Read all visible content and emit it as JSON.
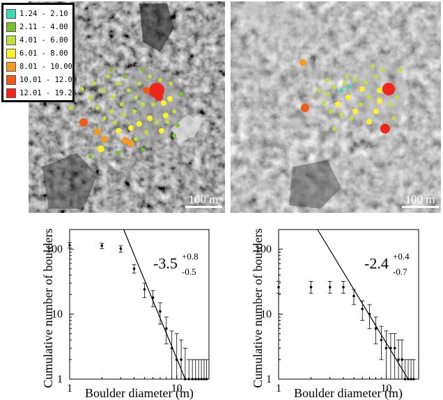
{
  "figure": {
    "legend": {
      "entries": [
        {
          "label": "1.24 - 2.10",
          "color": "#3fd9b4"
        },
        {
          "label": "2.11 - 4.00",
          "color": "#7cbf2a"
        },
        {
          "label": "4.01 - 6.00",
          "color": "#bfe03a"
        },
        {
          "label": "6.01 - 8.00",
          "color": "#fbf22d"
        },
        {
          "label": "8.01 - 10.00",
          "color": "#f29a22"
        },
        {
          "label": "10.01 - 12.00",
          "color": "#ef5b17"
        },
        {
          "label": "12.01 - 19.25",
          "color": "#f1261a"
        }
      ]
    },
    "images": [
      {
        "scale_label": "100 m",
        "tone": "dark grey rocky terrain with bright boulder cluster"
      },
      {
        "scale_label": "100 m",
        "tone": "lighter grey terrain with boulder cluster"
      }
    ]
  },
  "chart_data": [
    {
      "type": "scatter",
      "xlabel": "Boulder diameter (m)",
      "ylabel": "Cumulative number of boulders",
      "xscale": "log",
      "yscale": "log",
      "xlim": [
        1,
        20
      ],
      "ylim": [
        1,
        200
      ],
      "xticks": [
        "1",
        "10"
      ],
      "yticks": [
        "1",
        "10",
        "100"
      ],
      "annotation": {
        "value": "-3.5",
        "sup": "+0.8",
        "sub": "-0.5"
      },
      "fit_line": {
        "slope": -3.5,
        "points": [
          [
            3.2,
            200
          ],
          [
            12,
            1
          ]
        ]
      },
      "points": [
        {
          "x": 1.0,
          "y": 115,
          "err_lo": 104,
          "err_hi": 126
        },
        {
          "x": 2.0,
          "y": 113,
          "err_lo": 102,
          "err_hi": 124
        },
        {
          "x": 3.0,
          "y": 102,
          "err_lo": 90,
          "err_hi": 113
        },
        {
          "x": 4.0,
          "y": 50,
          "err_lo": 43,
          "err_hi": 58
        },
        {
          "x": 5.0,
          "y": 24,
          "err_lo": 18,
          "err_hi": 30
        },
        {
          "x": 6.0,
          "y": 18,
          "err_lo": 13,
          "err_hi": 23
        },
        {
          "x": 7.0,
          "y": 11,
          "err_lo": 7,
          "err_hi": 15
        },
        {
          "x": 8.0,
          "y": 6,
          "err_lo": 3.5,
          "err_hi": 9
        },
        {
          "x": 9.0,
          "y": 3,
          "err_lo": 1,
          "err_hi": 5.5
        },
        {
          "x": 10.0,
          "y": 2,
          "err_lo": 1,
          "err_hi": 5
        },
        {
          "x": 11.0,
          "y": 2,
          "err_lo": 1,
          "err_hi": 4
        },
        {
          "x": 12.0,
          "y": 1,
          "err_lo": 1,
          "err_hi": 3
        },
        {
          "x": 13.0,
          "y": 1,
          "err_lo": 1,
          "err_hi": 2
        },
        {
          "x": 14.0,
          "y": 1,
          "err_lo": 1,
          "err_hi": 2
        },
        {
          "x": 15.0,
          "y": 1,
          "err_lo": 1,
          "err_hi": 2
        },
        {
          "x": 16.0,
          "y": 1,
          "err_lo": 1,
          "err_hi": 2
        },
        {
          "x": 17.0,
          "y": 1,
          "err_lo": 1,
          "err_hi": 2
        },
        {
          "x": 18.0,
          "y": 1,
          "err_lo": 1,
          "err_hi": 2
        },
        {
          "x": 19.0,
          "y": 1,
          "err_lo": 1,
          "err_hi": 2
        }
      ]
    },
    {
      "type": "scatter",
      "xlabel": "Boulder diameter (m)",
      "ylabel": "Cumulative number of boulders",
      "xscale": "log",
      "yscale": "log",
      "xlim": [
        1,
        20
      ],
      "ylim": [
        1,
        200
      ],
      "xticks": [
        "1",
        "10"
      ],
      "yticks": [
        "1",
        "10",
        "100"
      ],
      "annotation": {
        "value": "-2.4",
        "sup": "+0.4",
        "sub": "-0.7"
      },
      "fit_line": {
        "slope": -2.4,
        "points": [
          [
            2.3,
            200
          ],
          [
            16,
            1
          ]
        ]
      },
      "points": [
        {
          "x": 1.0,
          "y": 26,
          "err_lo": 21,
          "err_hi": 32
        },
        {
          "x": 2.0,
          "y": 26,
          "err_lo": 21,
          "err_hi": 32
        },
        {
          "x": 3.0,
          "y": 26,
          "err_lo": 21,
          "err_hi": 32
        },
        {
          "x": 4.0,
          "y": 26,
          "err_lo": 21,
          "err_hi": 32
        },
        {
          "x": 5.0,
          "y": 19,
          "err_lo": 14,
          "err_hi": 24
        },
        {
          "x": 6.0,
          "y": 12,
          "err_lo": 8,
          "err_hi": 16
        },
        {
          "x": 7.0,
          "y": 10,
          "err_lo": 6,
          "err_hi": 14
        },
        {
          "x": 8.0,
          "y": 6,
          "err_lo": 3.5,
          "err_hi": 9
        },
        {
          "x": 9.0,
          "y": 4,
          "err_lo": 2,
          "err_hi": 6.5
        },
        {
          "x": 10.0,
          "y": 3,
          "err_lo": 1,
          "err_hi": 5.5
        },
        {
          "x": 11.0,
          "y": 3,
          "err_lo": 1,
          "err_hi": 5
        },
        {
          "x": 12.0,
          "y": 3,
          "err_lo": 1,
          "err_hi": 5
        },
        {
          "x": 13.0,
          "y": 2,
          "err_lo": 1,
          "err_hi": 4
        },
        {
          "x": 14.0,
          "y": 2,
          "err_lo": 1,
          "err_hi": 4
        },
        {
          "x": 15.0,
          "y": 1,
          "err_lo": 1,
          "err_hi": 2
        },
        {
          "x": 16.0,
          "y": 1,
          "err_lo": 1,
          "err_hi": 2
        },
        {
          "x": 17.0,
          "y": 1,
          "err_lo": 1,
          "err_hi": 2
        },
        {
          "x": 18.0,
          "y": 1,
          "err_lo": 1,
          "err_hi": 2
        }
      ]
    }
  ]
}
